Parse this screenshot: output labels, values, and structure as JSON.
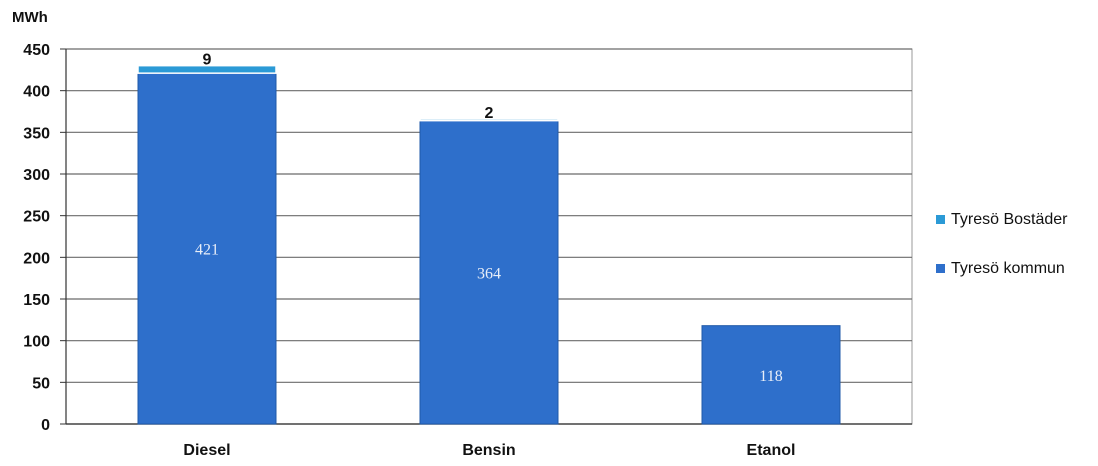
{
  "chart_data": {
    "type": "bar",
    "stacked": true,
    "y_unit_label": "MWh",
    "categories": [
      "Diesel",
      "Bensin",
      "Etanol"
    ],
    "series": [
      {
        "name": "Tyresö kommun",
        "values": [
          421,
          364,
          118
        ],
        "color": "#2e6fcb"
      },
      {
        "name": "Tyresö Bostäder",
        "values": [
          9,
          2,
          0
        ],
        "color": "#2b9ad6"
      }
    ],
    "inner_labels": [
      "421",
      "364",
      "118"
    ],
    "top_labels": [
      "9",
      "2",
      ""
    ],
    "ylim": [
      0,
      450
    ],
    "yticks": [
      "0",
      "50",
      "100",
      "150",
      "200",
      "250",
      "300",
      "350",
      "400",
      "450"
    ],
    "grid": true,
    "legend_position": "right"
  }
}
